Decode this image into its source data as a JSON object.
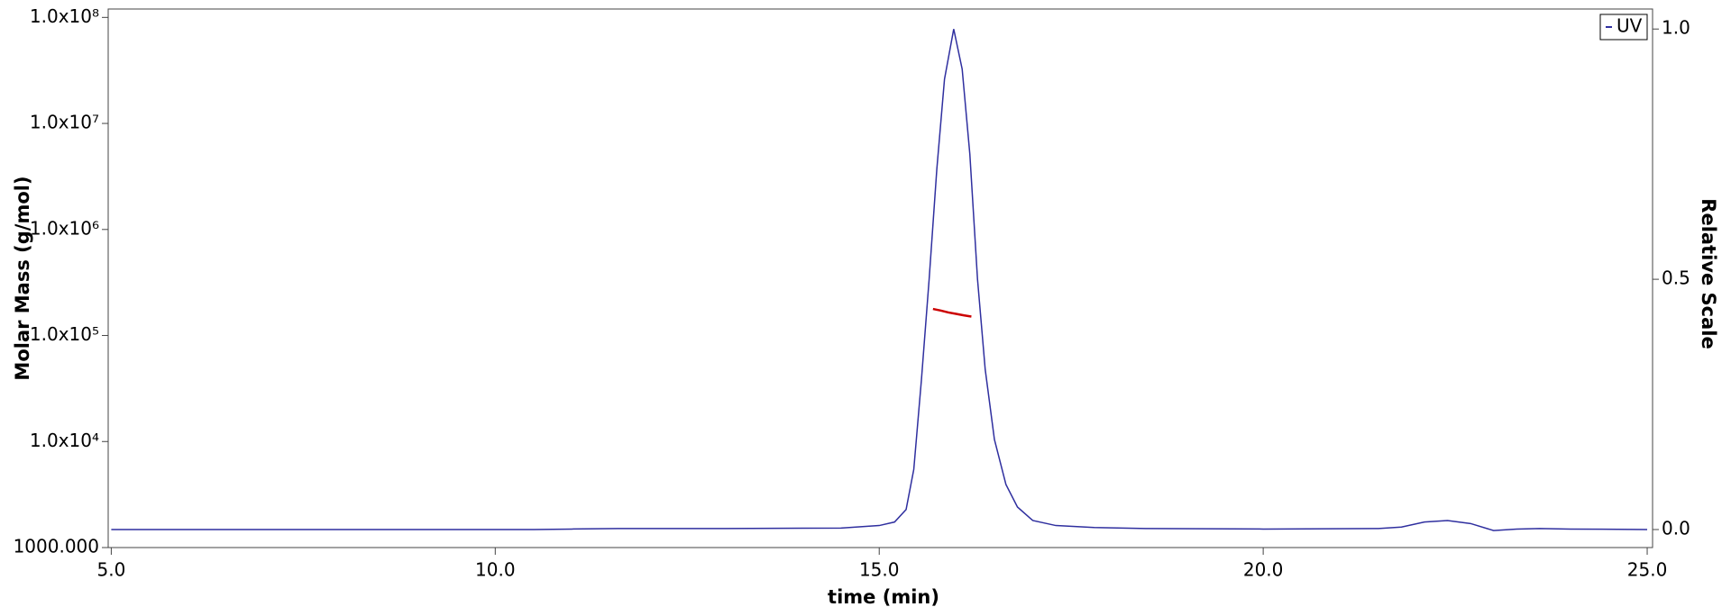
{
  "chart_data": {
    "type": "line",
    "x_label": "time (min)",
    "y_label": "Molar Mass (g/mol)",
    "y2_label": "Relative Scale",
    "xlim": [
      4.96,
      25.07
    ],
    "xticks": [
      {
        "value": 5,
        "label": "5.0"
      },
      {
        "value": 10,
        "label": "10.0"
      },
      {
        "value": 15,
        "label": "15.0"
      },
      {
        "value": 20,
        "label": "20.0"
      },
      {
        "value": 25,
        "label": "25.0"
      }
    ],
    "ylim": [
      1000,
      120000000
    ],
    "log_scale": true,
    "yticks": [
      {
        "value": 1000,
        "label": "1000.000"
      },
      {
        "value": 10000,
        "label": "1.0x10⁴"
      },
      {
        "value": 100000,
        "label": "1.0x10⁵"
      },
      {
        "value": 1000000,
        "label": "1.0x10⁶"
      },
      {
        "value": 10000000,
        "label": "1.0x10⁷"
      },
      {
        "value": 100000000,
        "label": "1.0x10⁸"
      }
    ],
    "y2lim": [
      -0.036,
      1.04
    ],
    "y2ticks": [
      {
        "value": 0,
        "label": "0.0"
      },
      0.5,
      {
        "value": 1,
        "label": "1.0"
      }
    ],
    "legend": "top-right",
    "series": [
      {
        "name": "UV",
        "color": "#2f2f9f",
        "axis": "y2",
        "x": [
          5.0,
          8.0,
          10.5,
          11.0,
          11.6,
          13.0,
          14.5,
          15.0,
          15.2,
          15.35,
          15.45,
          15.55,
          15.65,
          15.75,
          15.85,
          15.97,
          16.08,
          16.18,
          16.28,
          16.38,
          16.5,
          16.65,
          16.8,
          17.0,
          17.3,
          17.8,
          18.5,
          20.0,
          21.5,
          21.8,
          22.1,
          22.4,
          22.7,
          23.0,
          23.3,
          23.6,
          24.0,
          25.0
        ],
        "values": [
          0,
          0,
          0,
          0.001,
          0.002,
          0.002,
          0.003,
          0.008,
          0.015,
          0.04,
          0.12,
          0.3,
          0.5,
          0.72,
          0.9,
          1.0,
          0.92,
          0.75,
          0.5,
          0.32,
          0.18,
          0.09,
          0.045,
          0.018,
          0.008,
          0.004,
          0.002,
          0.001,
          0.002,
          0.005,
          0.015,
          0.018,
          0.012,
          -0.002,
          0.001,
          0.002,
          0.001,
          0
        ]
      },
      {
        "color": "#cc0000",
        "x": [
          15.7,
          15.8,
          15.9,
          16.0,
          16.1,
          16.2
        ],
        "values": [
          178000,
          172000,
          165000,
          160000,
          155000,
          151000
        ]
      }
    ]
  }
}
